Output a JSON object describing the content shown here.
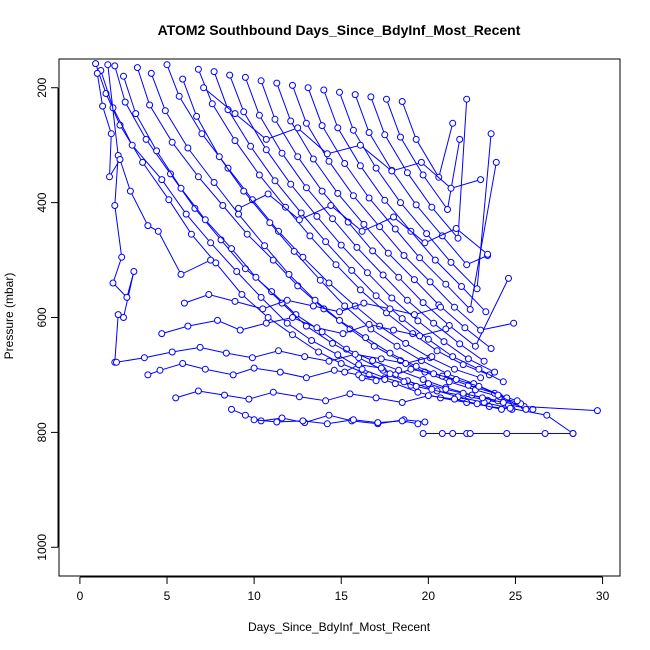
{
  "chart_data": {
    "type": "line",
    "title": "ATOM2 Southbound Days_Since_BdyInf_Most_Recent",
    "xlabel": "Days_Since_BdyInf_Most_Recent",
    "ylabel": "Pressure (mbar)",
    "xlim": [
      -1.2,
      31
    ],
    "ylim": [
      1050,
      150
    ],
    "y_reversed": true,
    "x_ticks": [
      0,
      5,
      10,
      15,
      20,
      25,
      30
    ],
    "y_ticks": [
      200,
      400,
      600,
      800,
      1000
    ],
    "grid": false,
    "legend": "none",
    "series_color": "#0000ff",
    "marker": "open-circle",
    "series": [
      {
        "x": [
          0.9,
          1.5,
          2.3,
          3.6,
          5.1,
          6.4,
          7.8,
          9.3,
          10.8,
          12.2,
          13.7,
          15.0,
          16.6,
          18.1,
          19.4,
          20.7,
          22.2,
          23.5,
          24.8
        ],
        "y": [
          158,
          210,
          265,
          330,
          395,
          455,
          505,
          560,
          600,
          630,
          660,
          680,
          700,
          715,
          730,
          740,
          748,
          755,
          760
        ]
      },
      {
        "x": [
          1.2,
          1.9,
          3.0,
          4.7,
          6.1,
          7.5,
          9.0,
          10.4,
          11.9,
          13.3,
          14.8,
          16.2,
          17.5,
          19.0,
          20.5,
          22.0,
          23.4,
          24.6,
          26.0
        ],
        "y": [
          170,
          235,
          300,
          360,
          420,
          470,
          520,
          565,
          610,
          640,
          665,
          690,
          705,
          718,
          728,
          736,
          744,
          752,
          760
        ]
      },
      {
        "x": [
          2.0,
          2.6,
          3.8,
          5.2,
          6.6,
          8.1,
          9.5,
          11.0,
          12.4,
          13.9,
          15.3,
          16.8,
          18.3,
          19.7,
          21.0,
          22.5,
          24.0,
          25.5,
          29.7
        ],
        "y": [
          162,
          225,
          290,
          350,
          410,
          465,
          515,
          555,
          595,
          625,
          655,
          675,
          692,
          708,
          722,
          735,
          745,
          755,
          762
        ]
      },
      {
        "x": [
          2.5,
          3.2,
          4.4,
          5.8,
          7.2,
          8.7,
          10.1,
          11.6,
          13.0,
          14.5,
          16.0,
          17.4,
          18.8,
          20.2,
          21.7,
          23.2,
          24.7,
          26.8,
          28.3
        ],
        "y": [
          180,
          245,
          310,
          375,
          430,
          480,
          530,
          575,
          615,
          645,
          670,
          692,
          710,
          725,
          738,
          748,
          758,
          770,
          802
        ]
      },
      {
        "x": [
          3.3,
          4.0,
          5.3,
          6.8,
          8.2,
          9.6,
          11.1,
          12.5,
          14.0,
          15.5,
          16.9,
          18.4,
          19.8,
          21.2,
          22.7,
          24.1,
          25.3
        ],
        "y": [
          165,
          230,
          295,
          355,
          405,
          455,
          500,
          545,
          585,
          620,
          650,
          675,
          695,
          712,
          726,
          738,
          750
        ]
      },
      {
        "x": [
          4.1,
          4.9,
          6.2,
          7.7,
          9.1,
          10.6,
          12.0,
          13.5,
          14.9,
          16.4,
          17.8,
          19.3,
          20.8,
          22.3,
          23.8,
          25.1
        ],
        "y": [
          175,
          240,
          305,
          365,
          420,
          475,
          525,
          570,
          605,
          635,
          662,
          685,
          702,
          718,
          732,
          745
        ]
      },
      {
        "x": [
          5.0,
          5.7,
          7.0,
          8.5,
          9.9,
          11.4,
          12.8,
          14.3,
          15.8,
          17.2,
          18.7,
          20.1,
          21.5,
          23.0
        ],
        "y": [
          160,
          215,
          280,
          340,
          395,
          450,
          495,
          540,
          580,
          615,
          645,
          670,
          690,
          705
        ]
      },
      {
        "x": [
          5.9,
          6.7,
          8.0,
          9.4,
          10.9,
          12.3,
          13.8,
          15.2,
          16.7,
          18.2,
          19.6,
          21.1,
          22.6,
          24.5
        ],
        "y": [
          185,
          250,
          320,
          380,
          435,
          485,
          535,
          580,
          620,
          650,
          675,
          698,
          715,
          740
        ]
      },
      {
        "x": [
          6.8,
          7.6,
          8.9,
          10.3,
          11.8,
          13.2,
          14.7,
          16.1,
          17.6,
          19.1,
          20.5,
          22.0,
          23.5
        ],
        "y": [
          168,
          228,
          292,
          352,
          408,
          458,
          508,
          552,
          592,
          628,
          658,
          682,
          700
        ]
      },
      {
        "x": [
          7.7,
          8.5,
          9.8,
          11.2,
          12.7,
          14.1,
          15.6,
          17.0,
          18.5,
          20.0,
          21.4,
          22.9,
          24.3
        ],
        "y": [
          172,
          238,
          302,
          362,
          418,
          468,
          518,
          562,
          602,
          638,
          668,
          690,
          712
        ]
      },
      {
        "x": [
          8.6,
          9.4,
          10.7,
          12.1,
          13.6,
          15.0,
          16.5,
          17.9,
          19.4,
          20.9,
          22.3,
          23.8
        ],
        "y": [
          178,
          242,
          308,
          368,
          424,
          474,
          522,
          566,
          606,
          642,
          672,
          695
        ]
      },
      {
        "x": [
          9.5,
          10.3,
          11.6,
          13.0,
          14.5,
          15.9,
          17.4,
          18.8,
          20.3,
          21.8,
          23.2
        ],
        "y": [
          182,
          248,
          314,
          374,
          428,
          478,
          526,
          570,
          610,
          646,
          676
        ]
      },
      {
        "x": [
          10.4,
          11.2,
          12.5,
          13.9,
          15.4,
          16.8,
          18.3,
          19.7,
          21.2,
          22.7,
          24.6
        ],
        "y": [
          188,
          255,
          320,
          380,
          434,
          484,
          530,
          574,
          614,
          650,
          532
        ]
      },
      {
        "x": [
          11.3,
          12.1,
          13.4,
          14.8,
          16.3,
          17.7,
          19.2,
          20.6,
          22.1,
          23.6
        ],
        "y": [
          192,
          258,
          324,
          384,
          438,
          488,
          534,
          578,
          618,
          654
        ]
      },
      {
        "x": [
          12.2,
          13.0,
          14.3,
          15.7,
          17.2,
          18.6,
          20.1,
          21.5,
          23.0,
          24.9
        ],
        "y": [
          196,
          262,
          328,
          388,
          442,
          492,
          538,
          582,
          622,
          610
        ]
      },
      {
        "x": [
          13.1,
          13.9,
          15.2,
          16.6,
          18.1,
          19.5,
          21.0,
          22.4,
          23.9
        ],
        "y": [
          200,
          266,
          332,
          392,
          446,
          496,
          542,
          586,
          330
        ]
      },
      {
        "x": [
          14.0,
          14.8,
          16.1,
          17.5,
          19.0,
          20.4,
          21.9,
          23.3
        ],
        "y": [
          204,
          270,
          336,
          396,
          450,
          500,
          546,
          590
        ]
      },
      {
        "x": [
          14.9,
          15.7,
          17.0,
          18.4,
          19.9,
          21.3,
          22.8,
          23.6
        ],
        "y": [
          208,
          274,
          340,
          400,
          454,
          504,
          550,
          280
        ]
      },
      {
        "x": [
          15.8,
          16.6,
          17.9,
          19.3,
          20.8,
          22.2,
          23.4
        ],
        "y": [
          212,
          278,
          344,
          404,
          458,
          508,
          492
        ]
      },
      {
        "x": [
          16.7,
          17.5,
          18.8,
          20.2,
          21.7,
          22.2
        ],
        "y": [
          216,
          282,
          348,
          408,
          462,
          220
        ]
      },
      {
        "x": [
          17.6,
          18.4,
          19.7,
          21.1,
          21.8
        ],
        "y": [
          220,
          286,
          352,
          412,
          290
        ]
      },
      {
        "x": [
          18.5,
          19.3,
          20.6,
          21.4
        ],
        "y": [
          224,
          290,
          356,
          262
        ]
      },
      {
        "x": [
          1.6,
          2.2,
          2.0,
          2.4,
          1.9,
          2.7,
          3.1,
          2.5,
          2.2,
          2.0
        ],
        "y": [
          160,
          318,
          405,
          495,
          540,
          565,
          520,
          600,
          595,
          678
        ]
      },
      {
        "x": [
          1.0,
          1.3,
          1.8,
          1.7,
          2.3,
          2.9,
          3.9,
          4.5,
          5.8,
          7.5
        ],
        "y": [
          175,
          232,
          280,
          355,
          325,
          380,
          440,
          450,
          525,
          500
        ]
      },
      {
        "x": [
          5.5,
          6.8,
          8.3,
          9.7,
          11.1,
          12.6,
          14.1,
          15.5,
          17.0,
          18.5,
          20.0,
          21.5,
          22.8,
          24.2
        ],
        "y": [
          740,
          728,
          735,
          742,
          730,
          738,
          745,
          733,
          740,
          748,
          736,
          742,
          750,
          760
        ]
      },
      {
        "x": [
          8.7,
          9.5,
          10.4,
          11.6,
          12.9,
          14.3,
          15.6,
          17.1,
          18.6,
          19.8
        ],
        "y": [
          760,
          770,
          780,
          775,
          783,
          770,
          780,
          785,
          778,
          782
        ]
      },
      {
        "x": [
          10.0,
          11.3,
          12.8,
          14.2,
          15.7,
          17.1,
          18.5,
          19.4
        ],
        "y": [
          778,
          782,
          780,
          785,
          778,
          783,
          780,
          785
        ]
      },
      {
        "x": [
          19.7,
          20.8,
          21.4,
          22.2,
          22.4,
          24.5,
          26.7,
          28.3
        ],
        "y": [
          802,
          802,
          802,
          802,
          802,
          802,
          802,
          802
        ]
      },
      {
        "x": [
          3.9,
          4.6,
          5.9,
          7.2,
          8.8,
          10.0,
          11.5,
          13.0,
          14.6,
          16.0,
          17.5
        ],
        "y": [
          700,
          692,
          680,
          690,
          700,
          688,
          695,
          705,
          692,
          700,
          708
        ]
      },
      {
        "x": [
          2.1,
          3.7,
          5.3,
          6.9,
          8.4,
          9.9,
          11.4,
          12.9,
          14.3,
          15.8,
          17.3,
          18.7,
          20.2
        ],
        "y": [
          678,
          670,
          660,
          652,
          662,
          670,
          658,
          668,
          676,
          664,
          672,
          680,
          668
        ]
      },
      {
        "x": [
          4.7,
          6.2,
          7.9,
          9.2,
          10.7,
          12.2,
          13.6,
          15.1,
          16.6,
          18.0,
          19.5,
          21.0
        ],
        "y": [
          628,
          615,
          605,
          622,
          610,
          600,
          618,
          628,
          612,
          622,
          632,
          620
        ]
      },
      {
        "x": [
          6.0,
          7.4,
          8.9,
          10.5,
          11.9,
          13.4,
          14.9,
          16.3,
          17.8,
          19.2,
          20.7
        ],
        "y": [
          575,
          560,
          572,
          585,
          570,
          580,
          590,
          575,
          585,
          595,
          582
        ]
      },
      {
        "x": [
          15.2,
          16.0,
          17.3,
          18.1,
          19.0,
          20.3,
          21.6,
          22.9,
          24.0,
          25.6
        ],
        "y": [
          695,
          682,
          688,
          700,
          690,
          698,
          708,
          720,
          735,
          760
        ]
      },
      {
        "x": [
          16.2,
          17.0,
          17.8,
          18.6,
          19.3,
          20.0,
          21.0,
          22.0,
          23.1,
          24.3
        ],
        "y": [
          705,
          710,
          698,
          712,
          720,
          715,
          725,
          732,
          740,
          748
        ]
      },
      {
        "x": [
          7.1,
          8.9,
          10.7,
          12.5,
          14.2,
          16.1,
          17.9,
          19.6,
          21.3,
          23.0
        ],
        "y": [
          200,
          245,
          290,
          270,
          315,
          300,
          345,
          330,
          375,
          360
        ]
      },
      {
        "x": [
          9.1,
          10.8,
          12.6,
          14.4,
          16.2,
          18.0,
          19.8,
          21.6,
          23.4
        ],
        "y": [
          410,
          385,
          430,
          405,
          450,
          425,
          470,
          445,
          490
        ]
      }
    ]
  }
}
